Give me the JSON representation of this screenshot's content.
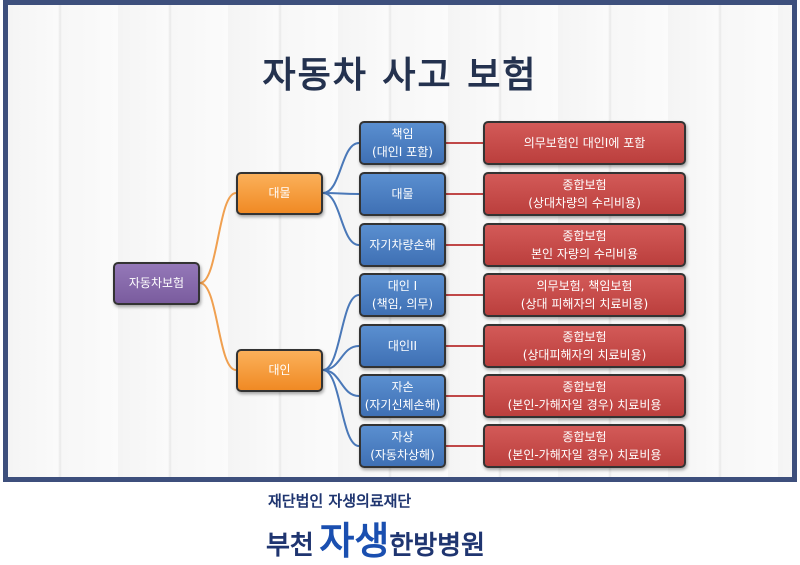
{
  "title": "자동차 사고 보험",
  "root": "자동차보험",
  "branches": [
    {
      "label": "대물",
      "children": [
        {
          "type": [
            "책임",
            "(대인I 포함)"
          ],
          "desc": [
            "의무보험인 대인I에 포함"
          ]
        },
        {
          "type": [
            "대물"
          ],
          "desc": [
            "종합보험",
            "(상대차량의 수리비용)"
          ]
        },
        {
          "type": [
            "자기차량손해"
          ],
          "desc": [
            "종합보험",
            "본인 자량의 수리비용"
          ]
        }
      ]
    },
    {
      "label": "대인",
      "children": [
        {
          "type": [
            "대인 I",
            "(책임, 의무)"
          ],
          "desc": [
            "의무보험, 책임보험",
            "(상대 피해자의 치료비용)"
          ]
        },
        {
          "type": [
            "대인II"
          ],
          "desc": [
            "종합보험",
            "(상대피해자의 치료비용)"
          ]
        },
        {
          "type": [
            "자손",
            "(자기신체손해)"
          ],
          "desc": [
            "종합보험",
            "(본인-가해자일 경우) 치료비용"
          ]
        },
        {
          "type": [
            "자상",
            "(자동차상해)"
          ],
          "desc": [
            "종합보험",
            "(본인-가해자일 경우) 치료비용"
          ]
        }
      ]
    }
  ],
  "logo": {
    "line1": "재단법인 자생의료재단",
    "city": "부천",
    "brand": "자생",
    "suffix": "한방병원"
  },
  "colors": {
    "root": "#7a5c9e",
    "branch": "#f08a24",
    "type": "#3f70b4",
    "desc": "#bb3f3d",
    "frame": "#3d4f7c"
  }
}
